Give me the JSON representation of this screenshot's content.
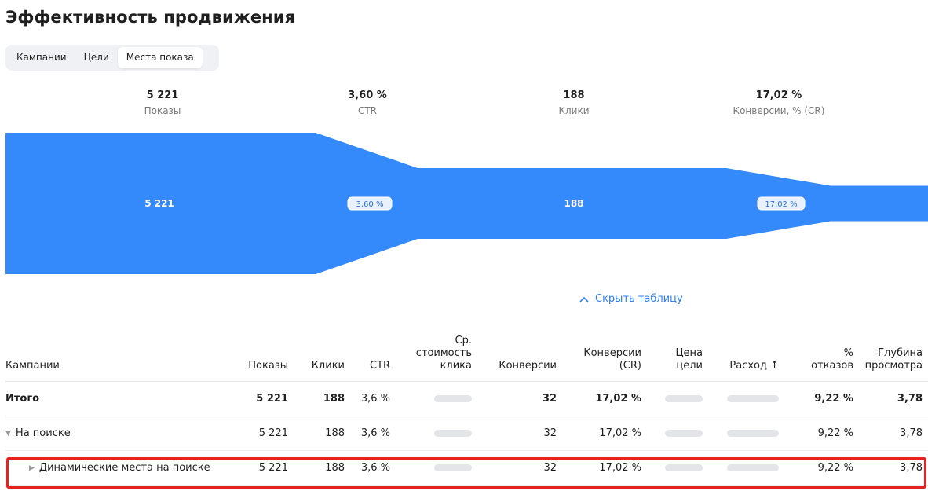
{
  "page": {
    "title": "Эффективность продвижения"
  },
  "tabs": [
    {
      "label": "Кампании",
      "active": false
    },
    {
      "label": "Цели",
      "active": false
    },
    {
      "label": "Места показа",
      "active": true
    }
  ],
  "metrics": [
    {
      "value": "5 221",
      "label": "Показы"
    },
    {
      "value": "3,60 %",
      "label": "CTR"
    },
    {
      "value": "188",
      "label": "Клики"
    },
    {
      "value": "17,02 %",
      "label": "Конверсии, % (CR)"
    }
  ],
  "funnel": {
    "color": "#3489fb",
    "stages": [
      {
        "label": "5 221",
        "share": 1.0
      },
      {
        "label": "188",
        "share": 0.5
      }
    ],
    "ratios": [
      "3,60 %",
      "17,02 %"
    ],
    "final_share": 0.25
  },
  "hide_table": {
    "label": "Скрыть таблицу",
    "icon": "chevron-up-icon"
  },
  "table": {
    "headers": {
      "campaign": "Кампании",
      "shows": "Показы",
      "clicks": "Клики",
      "ctr": "CTR",
      "cpc_1": "Ср.",
      "cpc_2": "стоимость",
      "cpc_3": "клика",
      "conversions": "Конверсии",
      "cr_1": "Конверсии",
      "cr_2": "(CR)",
      "goal_price_1": "Цена",
      "goal_price_2": "цели",
      "spend": "Расход ↑",
      "bounce_1": "%",
      "bounce_2": "отказов",
      "depth_1": "Глубина",
      "depth_2": "просмотра"
    },
    "rows": [
      {
        "name": "Итого",
        "shows": "5 221",
        "clicks": "188",
        "ctr": "3,6 %",
        "conversions": "32",
        "cr": "17,02 %",
        "bounce": "9,22 %",
        "depth": "3,78"
      },
      {
        "name": "На поиске",
        "shows": "5 221",
        "clicks": "188",
        "ctr": "3,6 %",
        "conversions": "32",
        "cr": "17,02 %",
        "bounce": "9,22 %",
        "depth": "3,78"
      },
      {
        "name": "Динамические места на поиске",
        "shows": "5 221",
        "clicks": "188",
        "ctr": "3,6 %",
        "conversions": "32",
        "cr": "17,02 %",
        "bounce": "9,22 %",
        "depth": "3,78"
      }
    ]
  },
  "colors": {
    "accent": "#2d7df6",
    "highlight": "#e5231c",
    "funnel": "#3489fb"
  }
}
